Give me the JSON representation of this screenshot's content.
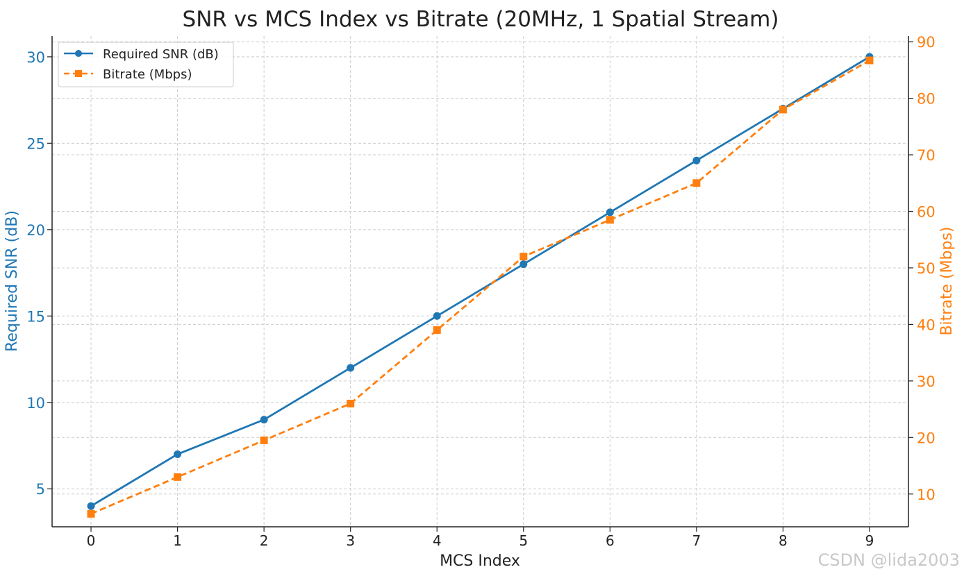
{
  "chart_data": {
    "type": "line",
    "title": "SNR vs MCS Index vs Bitrate (20MHz, 1 Spatial Stream)",
    "xlabel": "MCS Index",
    "ylabel": "Required SNR (dB)",
    "y2label": "Bitrate (Mbps)",
    "x": [
      0,
      1,
      2,
      3,
      4,
      5,
      6,
      7,
      8,
      9
    ],
    "xlim": [
      -0.45,
      9.45
    ],
    "ylim": [
      2.8,
      31.2
    ],
    "y2lim": [
      4.2,
      91.0
    ],
    "yticks": [
      "5",
      "10",
      "15",
      "20",
      "25",
      "30"
    ],
    "y2ticks": [
      "10",
      "20",
      "30",
      "40",
      "50",
      "60",
      "70",
      "80",
      "90"
    ],
    "xticks": [
      "0",
      "1",
      "2",
      "3",
      "4",
      "5",
      "6",
      "7",
      "8",
      "9"
    ],
    "grid": true,
    "legend_position": "top-left",
    "series": [
      {
        "name": "Required SNR (dB)",
        "axis": "left",
        "style": "solid",
        "marker": "circle",
        "color": "#1f77b4",
        "values": [
          4,
          7,
          9,
          12,
          15,
          18,
          21,
          24,
          27,
          30
        ]
      },
      {
        "name": "Bitrate (Mbps)",
        "axis": "right",
        "style": "dashed",
        "marker": "square",
        "color": "#ff7f0e",
        "values": [
          6.5,
          13,
          19.5,
          26,
          39,
          52,
          58.5,
          65,
          78,
          86.7
        ]
      }
    ]
  },
  "watermark": "CSDN @lida2003",
  "colors": {
    "left_axis": "#1f77b4",
    "right_axis": "#ff7f0e",
    "grid": "#cccccc",
    "text": "#222222"
  }
}
